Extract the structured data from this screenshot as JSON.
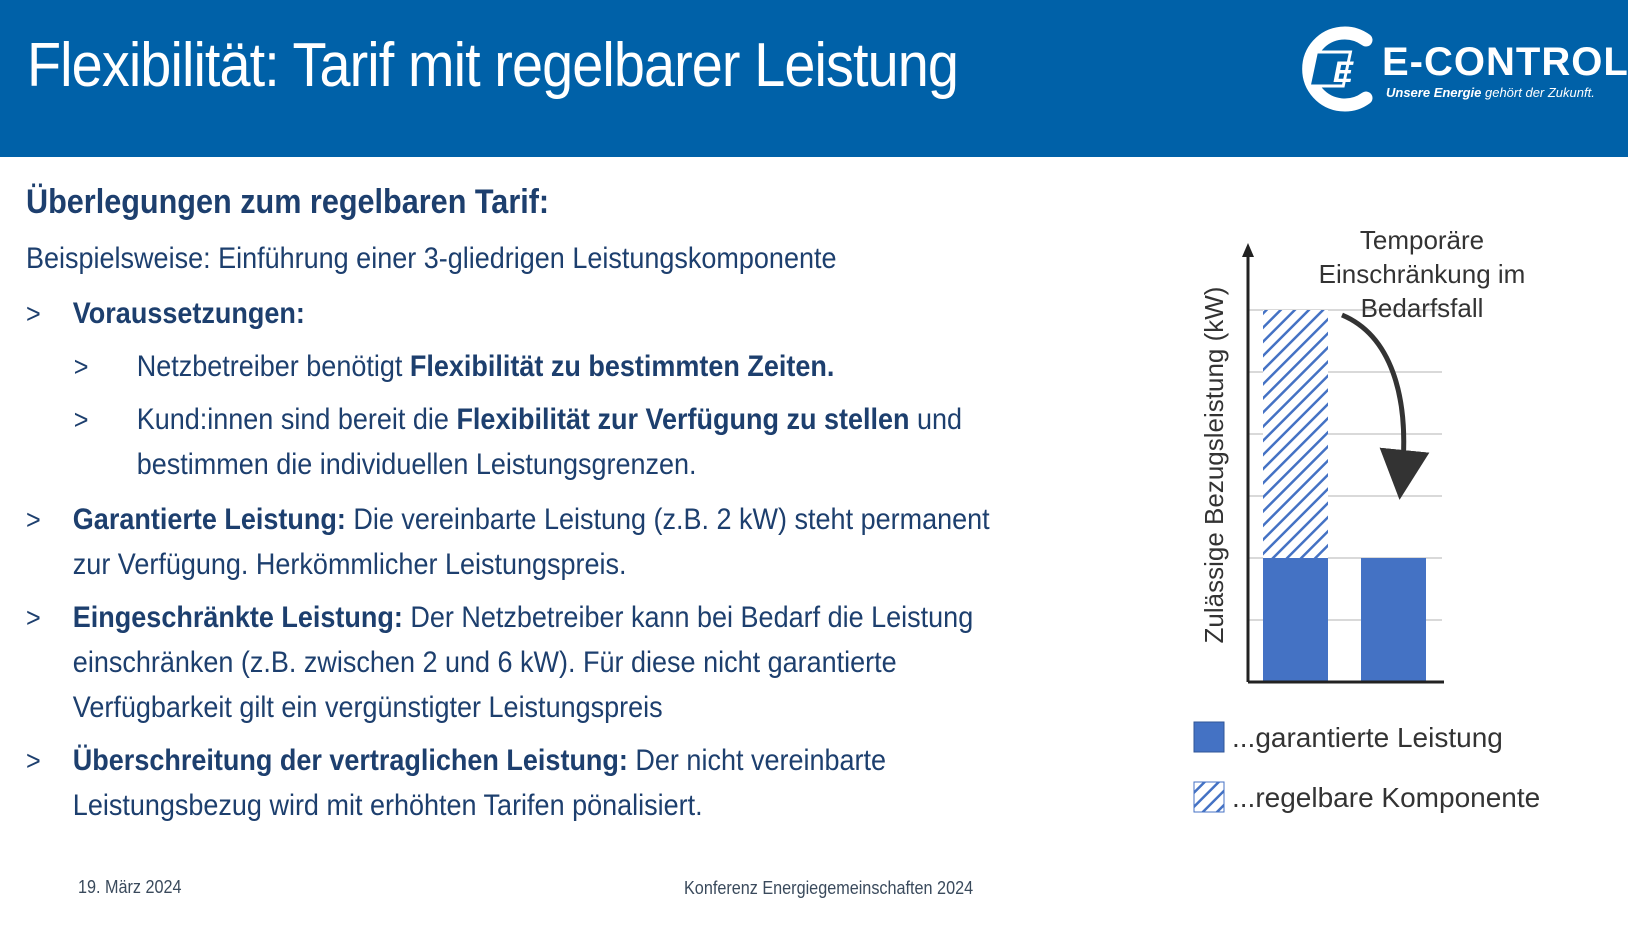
{
  "header": {
    "title": "Flexibilität: Tarif mit regelbarer Leistung",
    "logo_name": "E-CONTROL",
    "logo_tag_bold": "Unsere Energie",
    "logo_tag_rest": " gehört der Zukunft."
  },
  "main": {
    "heading": "Überlegungen zum regelbaren Tarif:",
    "intro": "Beispielsweise: Einführung einer 3-gliedrigen Leistungskomponente",
    "bullet_symbol": ">",
    "items": [
      {
        "bold": "Voraussetzungen:",
        "text": ""
      },
      {
        "pre": "Netzbetreiber benötigt ",
        "bold": "Flexibilität zu bestimmten Zeiten.",
        "post": ""
      },
      {
        "pre": "Kund:innen sind bereit die ",
        "bold": "Flexibilität zur Verfügung zu stellen",
        "post": " und",
        "cont": "bestimmen die individuellen Leistungsgrenzen."
      },
      {
        "bold": "Garantierte Leistung:",
        "text": " Die vereinbarte Leistung (z.B. 2 kW) steht permanent",
        "cont": "zur Verfügung. Herkömmlicher Leistungspreis."
      },
      {
        "bold": "Eingeschränkte Leistung:",
        "text": " Der Netzbetreiber kann bei Bedarf die Leistung",
        "cont": "einschränken (z.B. zwischen 2 und 6 kW). Für diese nicht garantierte",
        "cont2": "Verfügbarkeit gilt ein vergünstigter Leistungspreis"
      },
      {
        "bold": "Überschreitung der vertraglichen Leistung:",
        "text": " Der nicht vereinbarte",
        "cont": "Leistungsbezug wird mit erhöhten Tarifen pönalisiert."
      }
    ]
  },
  "footer": {
    "date": "19. März 2024",
    "conference": "Konferenz Energiegemeinschaften 2024"
  },
  "colors": {
    "header_bg": "#0061a8",
    "text": "#1d3f6e",
    "bar": "#4472c4"
  },
  "chart_data": {
    "type": "bar",
    "ylabel": "Zulässige Bezugsleistung (kW)",
    "annotation": [
      "Temporäre",
      "Einschränkung im",
      "Bedarfsfall"
    ],
    "categories": [
      "",
      ""
    ],
    "series": [
      {
        "name": "...garantierte Leistung",
        "values": [
          2,
          2
        ],
        "pattern": "solid"
      },
      {
        "name": "...regelbare Komponente",
        "values": [
          4,
          0
        ],
        "pattern": "hatched"
      }
    ],
    "ylim": [
      0,
      6
    ],
    "grid": true,
    "legend": "bottom"
  }
}
